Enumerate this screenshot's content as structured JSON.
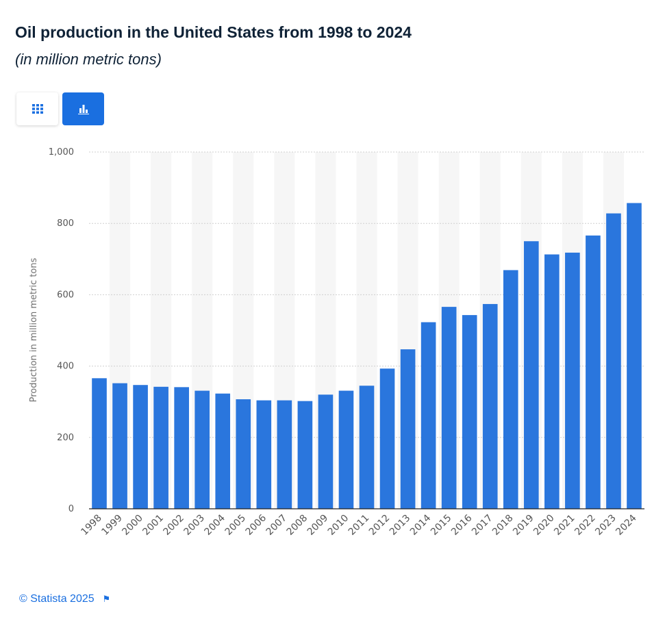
{
  "header": {
    "title": "Oil production in the United States from 1998 to 2024",
    "subtitle": "(in million metric tons)"
  },
  "toolbar": {
    "table_view_icon": "grid-icon",
    "chart_view_icon": "bar-chart-icon",
    "active_view": "chart"
  },
  "colors": {
    "bar": "#2a76dd",
    "accent": "#1a6fe0",
    "band": "#f6f6f6",
    "grid": "#cfcfcf"
  },
  "chart_data": {
    "type": "bar",
    "title": "Oil production in the United States from 1998 to 2024",
    "subtitle": "(in million metric tons)",
    "xlabel": "",
    "ylabel": "Production in million metric tons",
    "ylim": [
      0,
      1000
    ],
    "yticks": [
      0,
      200,
      400,
      600,
      800,
      1000
    ],
    "ytick_labels": [
      "0",
      "200",
      "400",
      "600",
      "800",
      "1,000"
    ],
    "grid": true,
    "categories": [
      "1998",
      "1999",
      "2000",
      "2001",
      "2002",
      "2003",
      "2004",
      "2005",
      "2006",
      "2007",
      "2008",
      "2009",
      "2010",
      "2011",
      "2012",
      "2013",
      "2014",
      "2015",
      "2016",
      "2017",
      "2018",
      "2019",
      "2020",
      "2021",
      "2022",
      "2023",
      "2024"
    ],
    "values": [
      366,
      352,
      347,
      342,
      341,
      331,
      323,
      307,
      304,
      304,
      302,
      320,
      331,
      345,
      393,
      447,
      523,
      566,
      543,
      574,
      669,
      750,
      713,
      718,
      766,
      828,
      857
    ]
  },
  "footer": {
    "copyright": "© Statista 2025",
    "flag_icon": "flag-icon"
  }
}
